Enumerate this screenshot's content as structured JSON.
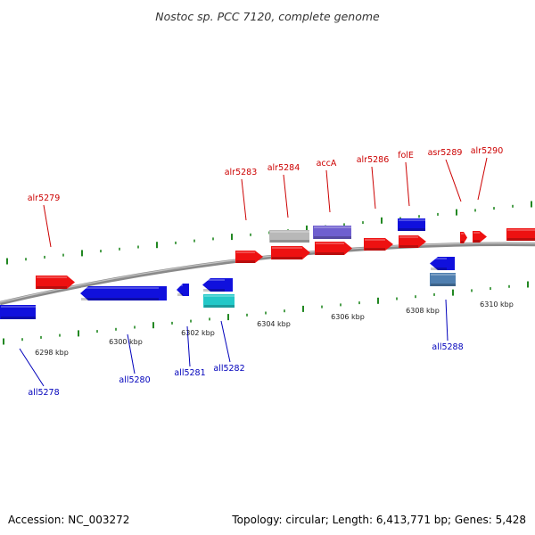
{
  "title": "Nostoc sp. PCC 7120, complete genome",
  "footer": {
    "accession": "Accession: NC_003272",
    "summary": "Topology: circular; Length: 6,413,771 bp; Genes: 5,428"
  },
  "colors": {
    "forward": "#ee1111",
    "reverse": "#1010dd",
    "forward_label": "#cc0000",
    "reverse_label": "#0000bb",
    "tick": "#228822",
    "backbone": "#888888",
    "gray_feature": "#b8b8b8",
    "purple_feature": "#6f5fcf",
    "cyan_feature": "#22c8c8",
    "steel_feature": "#4f7fb0"
  },
  "scale": {
    "kbp_labels": [
      "6298 kbp",
      "6300 kbp",
      "6302 kbp",
      "6304 kbp",
      "6306 kbp",
      "6308 kbp",
      "6310 kbp"
    ]
  },
  "genes": {
    "forward": [
      "alr5279",
      "alr5283",
      "alr5284",
      "accA",
      "alr5286",
      "folE",
      "asr5289",
      "alr5290"
    ],
    "reverse": [
      "all5278",
      "all5280",
      "all5281",
      "all5282",
      "all5288"
    ]
  }
}
